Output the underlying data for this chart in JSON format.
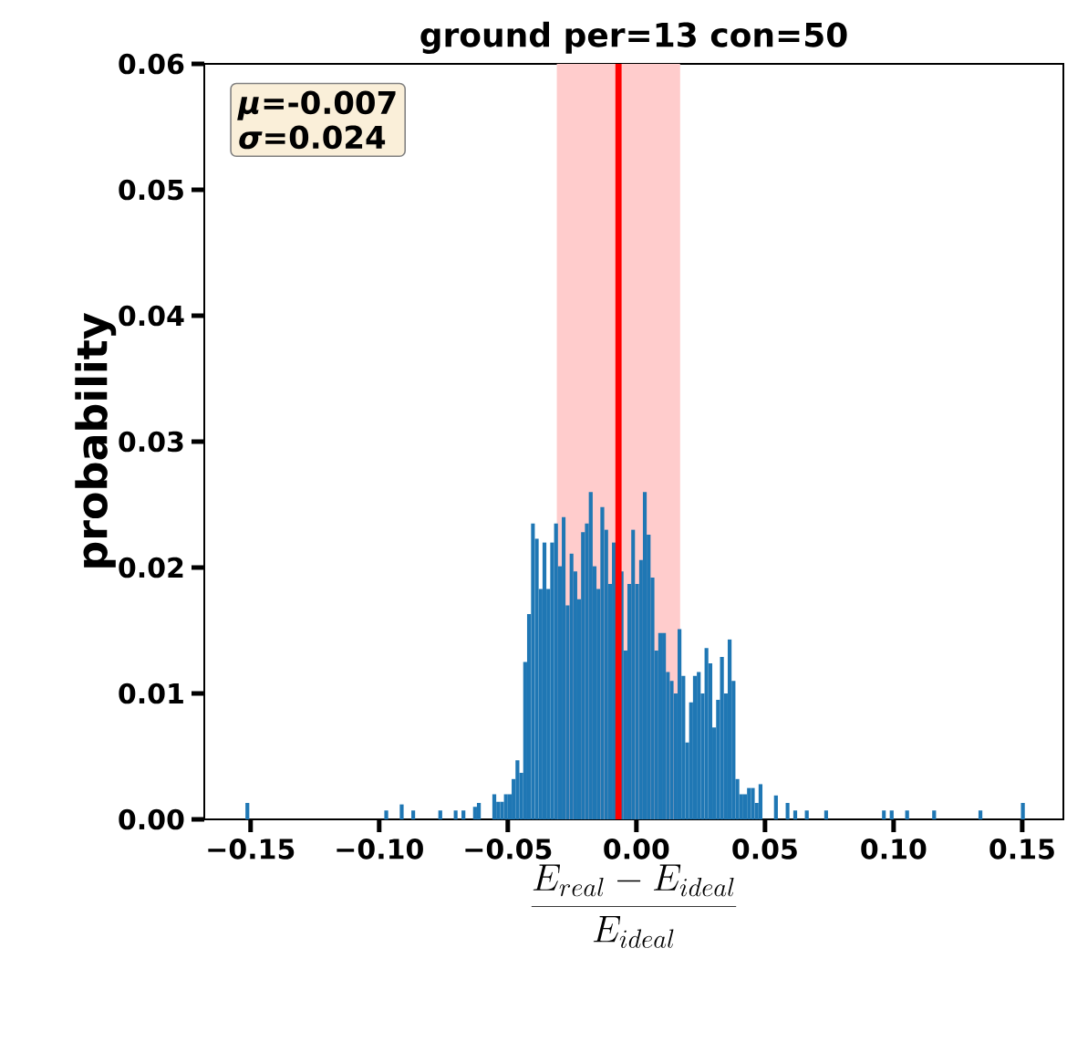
{
  "chart_data": {
    "type": "histogram",
    "title": "ground per=13 con=50",
    "xlabel": "\\frac{E_{real}-E_{ideal}}{E_{ideal}}",
    "ylabel": "probability",
    "color": "#1f77b4",
    "bins": [
      -0.152,
      -0.1505,
      -0.149,
      -0.1475,
      -0.146,
      -0.1445,
      -0.143,
      -0.1415,
      -0.14,
      -0.1385,
      -0.137,
      -0.1355,
      -0.134,
      -0.1325,
      -0.131,
      -0.1295,
      -0.128,
      -0.1265,
      -0.125,
      -0.1235,
      -0.122,
      -0.1205,
      -0.119,
      -0.1175,
      -0.116,
      -0.1145,
      -0.113,
      -0.1115,
      -0.11,
      -0.1085,
      -0.107,
      -0.1055,
      -0.104,
      -0.1025,
      -0.101,
      -0.0995,
      -0.098,
      -0.0965,
      -0.095,
      -0.0935,
      -0.092,
      -0.0905,
      -0.089,
      -0.0875,
      -0.086,
      -0.0845,
      -0.083,
      -0.0815,
      -0.08,
      -0.0785,
      -0.077,
      -0.0755,
      -0.074,
      -0.0725,
      -0.071,
      -0.0695,
      -0.068,
      -0.0665,
      -0.065,
      -0.0635,
      -0.062,
      -0.0605,
      -0.059,
      -0.0575,
      -0.056,
      -0.0545,
      -0.053,
      -0.0515,
      -0.05,
      -0.0485,
      -0.047,
      -0.0455,
      -0.044,
      -0.0425,
      -0.041,
      -0.0395,
      -0.038,
      -0.0365,
      -0.035,
      -0.0335,
      -0.032,
      -0.0305,
      -0.029,
      -0.0275,
      -0.026,
      -0.0245,
      -0.023,
      -0.0215,
      -0.02,
      -0.0185,
      -0.017,
      -0.0155,
      -0.014,
      -0.0125,
      -0.011,
      -0.0095,
      -0.008,
      -0.0065,
      -0.005,
      -0.0035,
      -0.002,
      -0.0005,
      0.001,
      0.0025,
      0.004,
      0.0055,
      0.007,
      0.0085,
      0.01,
      0.0115,
      0.013,
      0.0145,
      0.016,
      0.0175,
      0.019,
      0.0205,
      0.022,
      0.0235,
      0.025,
      0.0265,
      0.028,
      0.0295,
      0.031,
      0.0325,
      0.034,
      0.0355,
      0.037,
      0.0385,
      0.04,
      0.0415,
      0.043,
      0.0445,
      0.046,
      0.0475,
      0.049,
      0.0505,
      0.052,
      0.0535,
      0.055,
      0.0565,
      0.058,
      0.0595,
      0.061,
      0.0625,
      0.064,
      0.0655,
      0.067,
      0.0685,
      0.07,
      0.0715,
      0.073,
      0.0745,
      0.076,
      0.0775,
      0.079,
      0.0805,
      0.082,
      0.0835,
      0.085,
      0.0865,
      0.088,
      0.0895,
      0.091,
      0.0925,
      0.094,
      0.0955,
      0.097,
      0.0985,
      0.1,
      0.1015,
      0.103,
      0.1045,
      0.106,
      0.1075,
      0.109,
      0.1105,
      0.112,
      0.1135,
      0.115,
      0.1165,
      0.118,
      0.1195,
      0.121,
      0.1225,
      0.124,
      0.1255,
      0.127,
      0.1285,
      0.13,
      0.1315,
      0.133,
      0.1345,
      0.136,
      0.1375,
      0.139,
      0.1405,
      0.142,
      0.1435,
      0.145,
      0.1465,
      0.148,
      0.1495,
      0.151
    ],
    "values": [
      0.0013,
      0,
      0,
      0,
      0,
      0,
      0,
      0,
      0,
      0,
      0,
      0,
      0,
      0,
      0,
      0,
      0,
      0,
      0,
      0,
      0,
      0,
      0,
      0,
      0,
      0,
      0,
      0,
      0,
      0,
      0,
      0,
      0,
      0,
      0,
      0,
      0.0007,
      0,
      0,
      0,
      0.0012,
      0,
      0,
      0.0007,
      0,
      0,
      0,
      0,
      0,
      0,
      0.0007,
      0,
      0,
      0,
      0.0007,
      0,
      0.0007,
      0,
      0,
      0.001,
      0.0013,
      0,
      0,
      0,
      0.002,
      0.0014,
      0.0014,
      0.002,
      0.002,
      0.0032,
      0.0047,
      0.0037,
      0.0125,
      0.0163,
      0.0235,
      0.0223,
      0.0183,
      0.022,
      0.0183,
      0.022,
      0.0235,
      0.0201,
      0.024,
      0.017,
      0.0211,
      0.0197,
      0.0175,
      0.0228,
      0.0235,
      0.026,
      0.0201,
      0.0183,
      0.0248,
      0.023,
      0.0187,
      0.022,
      null,
      0.0197,
      0.0134,
      0.0187,
      0.023,
      0.0187,
      0.0206,
      0.026,
      0.0226,
      0.0192,
      0.0134,
      0.0148,
      0.0148,
      0.0117,
      0.011,
      0.01,
      0.0151,
      0.0114,
      0.0061,
      0.0093,
      0.0114,
      0.0117,
      0.01,
      0.0136,
      0.0124,
      0.0073,
      0.0095,
      0.0129,
      0.01,
      0.0143,
      0.011,
      0.0032,
      0.002,
      0.002,
      0.0025,
      0.0025,
      0.0013,
      0.0028,
      0,
      0,
      0,
      0.0019,
      0,
      0,
      0.0013,
      0,
      0.0007,
      0,
      0,
      0.0007,
      0,
      0,
      0,
      0,
      0.0007,
      0,
      0,
      0,
      0,
      0,
      0,
      0,
      0,
      0,
      0,
      0,
      0,
      0,
      0,
      0.0007,
      0,
      0.0007,
      0,
      0,
      0,
      0.0007,
      0,
      0,
      0,
      0,
      0,
      0,
      0.0007,
      0,
      0,
      0,
      0,
      0,
      0,
      0,
      0,
      0,
      0,
      0,
      0.0007,
      0,
      0,
      0,
      0,
      0,
      0,
      0,
      0,
      0,
      0,
      0.0013
    ],
    "xlim": [
      -0.168,
      0.166
    ],
    "ylim": [
      0,
      0.06
    ],
    "xticks": [
      {
        "value": -0.15,
        "label": "−0.15"
      },
      {
        "value": -0.1,
        "label": "−0.10"
      },
      {
        "value": -0.05,
        "label": "−0.05"
      },
      {
        "value": 0,
        "label": "0.00"
      },
      {
        "value": 0.05,
        "label": "0.05"
      },
      {
        "value": 0.1,
        "label": "0.10"
      },
      {
        "value": 0.15,
        "label": "0.15"
      }
    ],
    "yticks": [
      {
        "value": 0,
        "label": "0.00"
      },
      {
        "value": 0.01,
        "label": "0.01"
      },
      {
        "value": 0.02,
        "label": "0.02"
      },
      {
        "value": 0.03,
        "label": "0.03"
      },
      {
        "value": 0.04,
        "label": "0.04"
      },
      {
        "value": 0.05,
        "label": "0.05"
      },
      {
        "value": 0.06,
        "label": "0.06"
      }
    ],
    "ref_lines": [
      {
        "axis": "x",
        "value": -0.007,
        "color": "#ff0000"
      }
    ],
    "bands": [
      {
        "axis": "x",
        "from": -0.031,
        "to": 0.017,
        "color": "#ffcccc"
      }
    ],
    "annotations": [
      "*μ*=-0.007",
      "*σ*=0.024"
    ],
    "grid": false
  }
}
